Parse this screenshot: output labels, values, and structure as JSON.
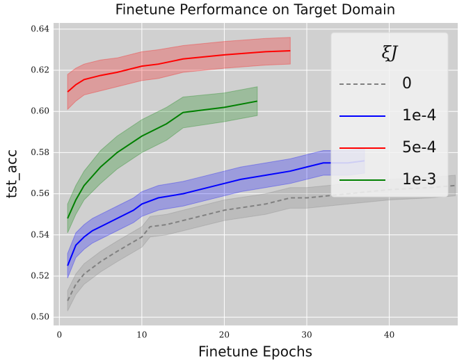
{
  "chart_data": {
    "type": "line",
    "title": "Finetune Performance on Target Domain",
    "x_label": "Finetune Epochs",
    "y_label": "tst_acc",
    "legend_title": "ξJ",
    "legend_position": "upper right",
    "grid": true,
    "xlim": [
      -0.7,
      48.3
    ],
    "ylim": [
      0.496,
      0.643
    ],
    "xticks": [
      0,
      10,
      20,
      30,
      40
    ],
    "yticks": [
      {
        "value": 0.5,
        "label": "0.50"
      },
      0.52,
      0.54,
      0.56,
      0.58,
      {
        "value": 0.6,
        "label": "0.60"
      },
      0.62,
      0.64
    ],
    "series": [
      {
        "name": "0",
        "color": "#808080",
        "dash": true,
        "x": [
          1,
          2,
          3,
          5,
          7,
          10,
          11,
          13,
          15,
          20,
          25,
          28,
          30,
          35,
          40,
          45,
          48
        ],
        "values": [
          0.508,
          0.516,
          0.521,
          0.527,
          0.532,
          0.539,
          0.544,
          0.545,
          0.547,
          0.552,
          0.555,
          0.558,
          0.558,
          0.56,
          0.562,
          0.563,
          0.564
        ],
        "lower": [
          0.503,
          0.511,
          0.516,
          0.522,
          0.527,
          0.534,
          0.539,
          0.54,
          0.542,
          0.547,
          0.55,
          0.553,
          0.553,
          0.555,
          0.557,
          0.558,
          0.559
        ],
        "upper": [
          0.513,
          0.521,
          0.526,
          0.532,
          0.537,
          0.544,
          0.549,
          0.55,
          0.552,
          0.557,
          0.56,
          0.563,
          0.563,
          0.565,
          0.567,
          0.568,
          0.569
        ]
      },
      {
        "name": "1e-4",
        "color": "#0000ff",
        "dash": false,
        "x": [
          1,
          2,
          3,
          4,
          5,
          7,
          9,
          10,
          12,
          15,
          17,
          20,
          22,
          25,
          28,
          30,
          32,
          35,
          37
        ],
        "values": [
          0.525,
          0.535,
          0.539,
          0.542,
          0.544,
          0.548,
          0.552,
          0.555,
          0.558,
          0.56,
          0.562,
          0.565,
          0.567,
          0.569,
          0.571,
          0.573,
          0.575,
          0.575,
          0.576
        ],
        "lower": [
          0.519,
          0.529,
          0.533,
          0.536,
          0.538,
          0.542,
          0.546,
          0.549,
          0.552,
          0.554,
          0.556,
          0.559,
          0.561,
          0.563,
          0.565,
          0.567,
          0.569,
          0.569,
          0.57
        ],
        "upper": [
          0.531,
          0.541,
          0.545,
          0.548,
          0.55,
          0.554,
          0.558,
          0.561,
          0.564,
          0.566,
          0.568,
          0.571,
          0.573,
          0.575,
          0.577,
          0.579,
          0.581,
          0.581,
          0.582
        ]
      },
      {
        "name": "5e-4",
        "color": "#ff0000",
        "dash": false,
        "x": [
          1,
          2,
          3,
          5,
          7,
          10,
          12,
          15,
          20,
          25,
          28
        ],
        "values": [
          0.6095,
          0.613,
          0.6155,
          0.6175,
          0.619,
          0.622,
          0.623,
          0.6255,
          0.6275,
          0.629,
          0.6295
        ],
        "lower": [
          0.601,
          0.605,
          0.608,
          0.61,
          0.612,
          0.615,
          0.616,
          0.619,
          0.621,
          0.6225,
          0.623
        ],
        "upper": [
          0.618,
          0.621,
          0.623,
          0.625,
          0.626,
          0.629,
          0.63,
          0.632,
          0.634,
          0.6355,
          0.636
        ]
      },
      {
        "name": "1e-3",
        "color": "#008000",
        "dash": false,
        "x": [
          1,
          2,
          3,
          5,
          7,
          10,
          13,
          15,
          20,
          24
        ],
        "values": [
          0.548,
          0.557,
          0.564,
          0.573,
          0.58,
          0.588,
          0.594,
          0.5995,
          0.602,
          0.605
        ],
        "lower": [
          0.541,
          0.55,
          0.557,
          0.565,
          0.572,
          0.58,
          0.586,
          0.592,
          0.595,
          0.598
        ],
        "upper": [
          0.555,
          0.564,
          0.571,
          0.581,
          0.588,
          0.596,
          0.602,
          0.607,
          0.609,
          0.612
        ]
      }
    ]
  }
}
